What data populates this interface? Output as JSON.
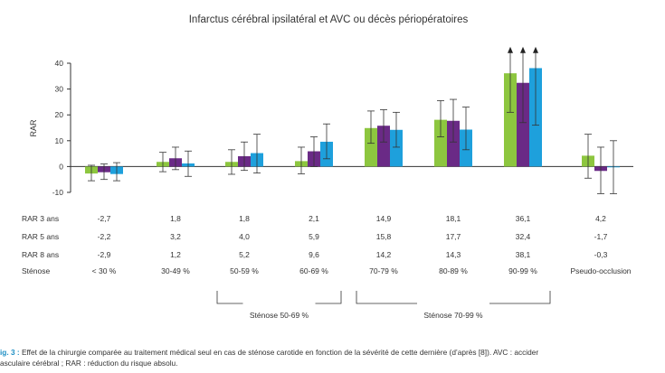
{
  "chart_data": {
    "type": "bar",
    "title": "Infarctus cérébral ipsilatéral et AVC ou décès périopératoires",
    "xlabel": "",
    "ylabel": "RAR",
    "ylim": [
      -10,
      40
    ],
    "yticks": [
      -10,
      0,
      10,
      20,
      30,
      40
    ],
    "grid": false,
    "categories": [
      "< 30 %",
      "30-49 %",
      "50-59 %",
      "60-69 %",
      "70-79 %",
      "80-89 %",
      "90-99 %",
      "Pseudo-occlusion"
    ],
    "series": [
      {
        "name": "RAR 3 ans",
        "color": "#8dc63f",
        "values": [
          -2.7,
          1.8,
          1.8,
          2.1,
          14.9,
          18.1,
          36.1,
          4.2
        ],
        "labels": [
          "-2,7",
          "1,8",
          "1,8",
          "2,1",
          "14,9",
          "18,1",
          "36,1",
          "4,2"
        ],
        "ci_low": [
          -5.5,
          -2.0,
          -3.0,
          -2.8,
          9.0,
          11.5,
          21.0,
          -4.5
        ],
        "ci_high": [
          0.5,
          5.5,
          6.5,
          7.5,
          21.5,
          25.5,
          45.0,
          12.5
        ]
      },
      {
        "name": "RAR 5 ans",
        "color": "#6a2a86",
        "values": [
          -2.2,
          3.2,
          4.0,
          5.9,
          15.8,
          17.7,
          32.4,
          -1.7
        ],
        "labels": [
          "-2,2",
          "3,2",
          "4,0",
          "5,9",
          "15,8",
          "17,7",
          "32,4",
          "-1,7"
        ],
        "ci_low": [
          -5.0,
          -1.2,
          -1.5,
          0.0,
          9.5,
          9.5,
          17.0,
          -10.5
        ],
        "ci_high": [
          1.0,
          7.5,
          9.5,
          11.5,
          22.0,
          26.0,
          45.0,
          7.5
        ]
      },
      {
        "name": "RAR 8 ans",
        "color": "#1ea0dc",
        "values": [
          -2.9,
          1.2,
          5.2,
          9.6,
          14.2,
          14.3,
          38.1,
          -0.3
        ],
        "labels": [
          "-2,9",
          "1,2",
          "5,2",
          "9,6",
          "14,2",
          "14,3",
          "38,1",
          "-0,3"
        ],
        "ci_low": [
          -5.5,
          -3.8,
          -2.5,
          3.0,
          7.5,
          6.5,
          16.0,
          -10.5
        ],
        "ci_high": [
          1.5,
          6.0,
          12.5,
          16.5,
          21.0,
          23.0,
          45.0,
          10.0
        ]
      }
    ],
    "arrows_up": [
      6
    ],
    "row_header": "Sténose",
    "groups": [
      {
        "label": "Sténose 50-69 %",
        "from": 2,
        "to": 3
      },
      {
        "label": "Sténose 70-99 %",
        "from": 4,
        "to": 6
      }
    ]
  },
  "caption": {
    "label": "ig. 3 :",
    "line1": " Effet de la chirurgie comparée au traitement médical seul en cas de sténose carotide en fonction de la sévérité de cette dernière (d’après [8]). AVC : accider",
    "line2": "asculaire cérébral ; RAR : réduction du risque absolu."
  }
}
